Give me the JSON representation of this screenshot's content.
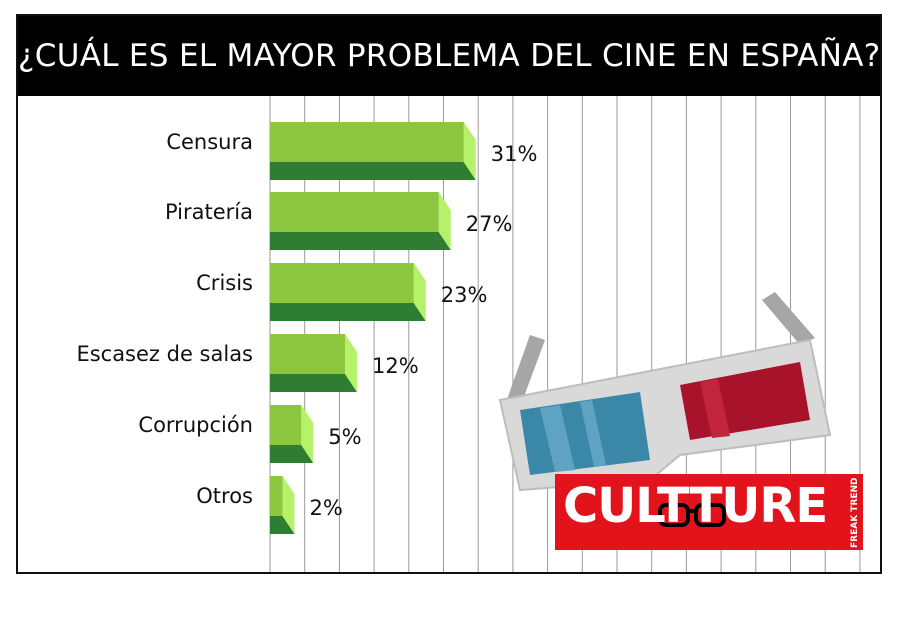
{
  "title": "¿CUÁL ES EL MAYOR PROBLEMA DEL CINE EN ESPAÑA?",
  "chart_data": {
    "type": "bar",
    "orientation": "horizontal",
    "title": "¿CUÁL ES EL MAYOR PROBLEMA DEL CINE EN ESPAÑA?",
    "categories": [
      "Censura",
      "Piratería",
      "Crisis",
      "Escasez de salas",
      "Corrupción",
      "Otros"
    ],
    "values": [
      31,
      27,
      23,
      12,
      5,
      2
    ],
    "value_labels": [
      "31%",
      "27%",
      "23%",
      "12%",
      "5%",
      "2%"
    ],
    "unit": "%",
    "xlabel": "",
    "ylabel": "",
    "grid": true,
    "legend": "none"
  },
  "brand": {
    "name": "CULTTURE",
    "tagline": "FREAK TRENDS",
    "logo_bg": "#e3131b"
  },
  "colors": {
    "bar_face": "#8dc63f",
    "bar_side": "#b5f26a",
    "bar_shadow": "#2e7d32",
    "grid": "#9a9a9a",
    "title_bg": "#000000",
    "lens_left": "#3a87a8",
    "lens_right": "#a8122a",
    "glasses_frame": "#d9d9d9"
  }
}
